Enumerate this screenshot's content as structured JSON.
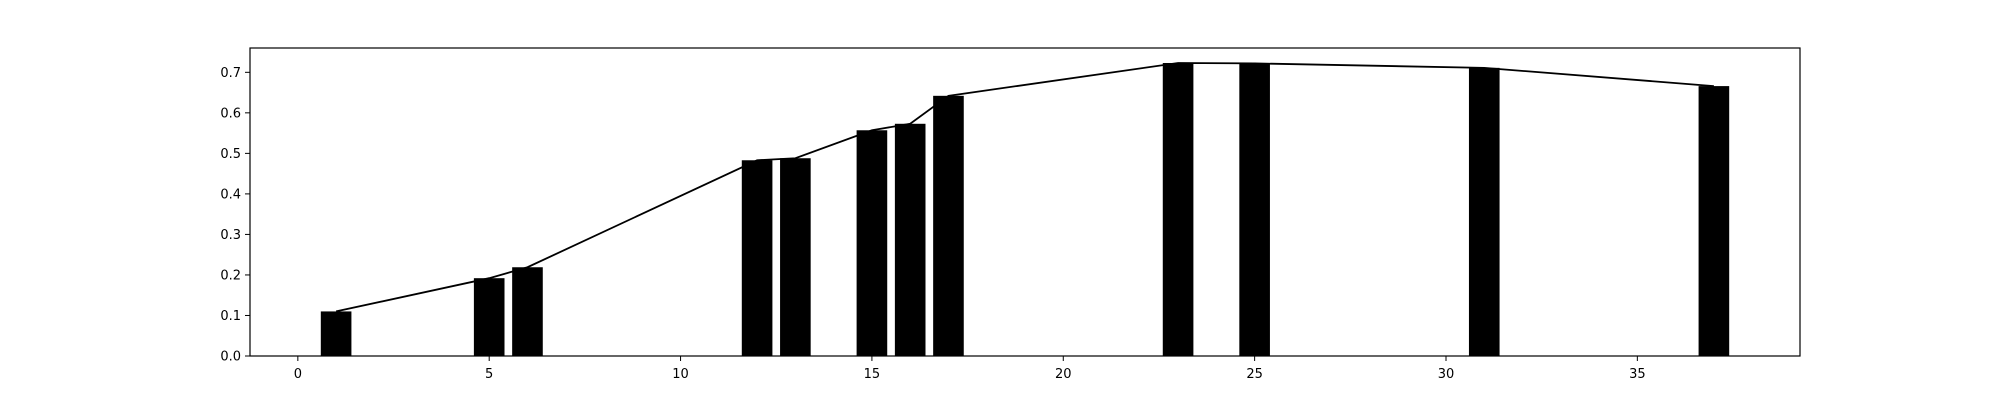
{
  "chart_data": {
    "type": "bar",
    "title": "",
    "xlabel": "",
    "ylabel": "",
    "xlim": [
      -1.25,
      39.25
    ],
    "ylim": [
      0,
      0.76
    ],
    "grid": false,
    "x": [
      1,
      5,
      6,
      12,
      13,
      15,
      16,
      17,
      23,
      25,
      31,
      37
    ],
    "values": [
      0.11,
      0.192,
      0.219,
      0.483,
      0.488,
      0.557,
      0.573,
      0.642,
      0.723,
      0.722,
      0.711,
      0.666
    ],
    "bar_width": 0.8,
    "bar_color": "#000000",
    "line": {
      "x": [
        1,
        5,
        6,
        12,
        13,
        15,
        16,
        17,
        23,
        25,
        31,
        37
      ],
      "y": [
        0.11,
        0.192,
        0.219,
        0.483,
        0.488,
        0.557,
        0.573,
        0.642,
        0.723,
        0.722,
        0.711,
        0.666
      ],
      "color": "#000000"
    },
    "x_ticks": [
      0,
      5,
      10,
      15,
      20,
      25,
      30,
      35
    ],
    "x_tick_labels": [
      "0",
      "5",
      "10",
      "15",
      "20",
      "25",
      "30",
      "35"
    ],
    "y_ticks": [
      0.0,
      0.1,
      0.2,
      0.3,
      0.4,
      0.5,
      0.6,
      0.7
    ],
    "y_tick_labels": [
      "0.0",
      "0.1",
      "0.2",
      "0.3",
      "0.4",
      "0.5",
      "0.6",
      "0.7"
    ]
  }
}
